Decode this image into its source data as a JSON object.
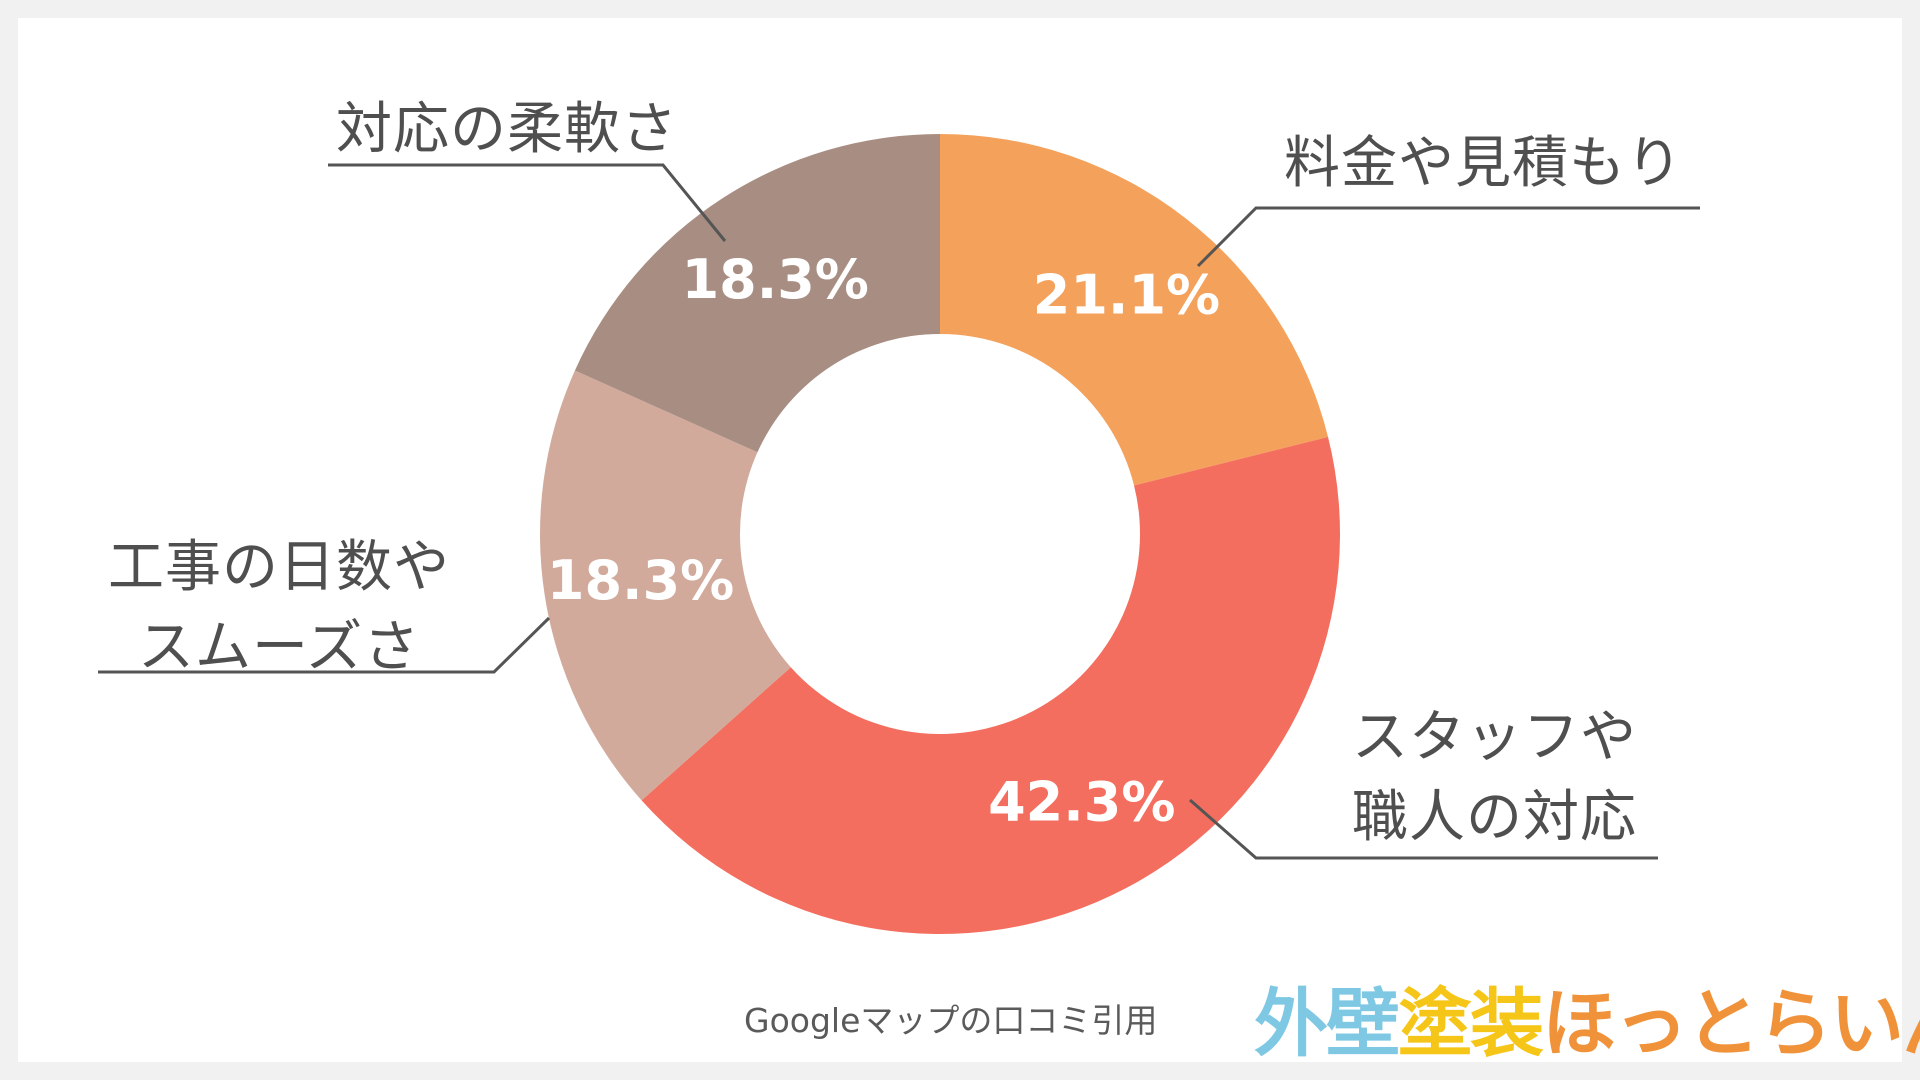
{
  "chart_data": {
    "type": "pie",
    "variant": "donut",
    "start": "12-o'clock",
    "direction": "clockwise",
    "slices": [
      {
        "label": "料金や見積もり",
        "value": 21.1,
        "value_label": "21.1%",
        "color": "#f4a15b"
      },
      {
        "label": "スタッフや職人の対応",
        "value": 42.3,
        "value_label": "42.3%",
        "color": "#f36e5e"
      },
      {
        "label": "工事の日数やスムーズさ",
        "value": 18.3,
        "value_label": "18.3%",
        "color": "#d1aa9b"
      },
      {
        "label": "対応の柔軟さ",
        "value": 18.3,
        "value_label": "18.3%",
        "color": "#a88d82"
      }
    ],
    "legend": "callout-lines",
    "grid": false
  },
  "labels": {
    "ryokin": [
      "料金や見積もり"
    ],
    "staff": [
      "スタッフや",
      "職人の対応"
    ],
    "koji": [
      "工事の日数や",
      "スムーズさ"
    ],
    "taio": [
      "対応の柔軟さ"
    ]
  },
  "source_note": "Googleマップの口コミ引用",
  "brand": {
    "parts": [
      {
        "text": "外壁",
        "color": "#7ec8e3"
      },
      {
        "text": "塗装",
        "color": "#f5c518"
      },
      {
        "text": "ほっとらいん",
        "color": "#f0923a"
      }
    ]
  },
  "colors": {
    "background": "#f1f1f1",
    "card": "#ffffff",
    "text": "#4f4f4f",
    "leader_line": "#555555"
  }
}
